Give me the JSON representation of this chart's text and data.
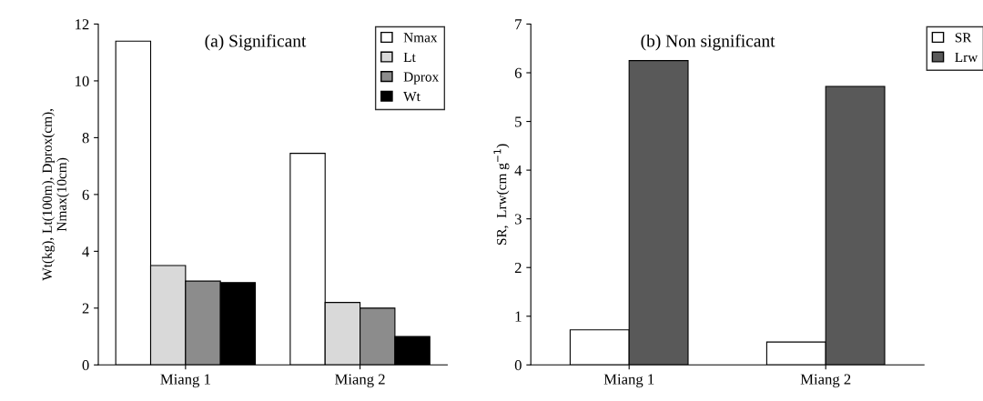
{
  "chart_data": [
    {
      "type": "bar",
      "title": "(a) Significant",
      "ylabel": "Wt(kg), Lt(100m), Dprox(cm),\nNmax(10cm)",
      "categories": [
        "Miang 1",
        "Miang 2"
      ],
      "series": [
        {
          "name": "Nmax",
          "color": "#ffffff",
          "values": [
            11.4,
            7.45
          ]
        },
        {
          "name": "Lt",
          "color": "#d9d9d9",
          "values": [
            3.5,
            2.2
          ]
        },
        {
          "name": "Dprox",
          "color": "#8c8c8c",
          "values": [
            2.95,
            2.0
          ]
        },
        {
          "name": "Wt",
          "color": "#000000",
          "values": [
            2.9,
            1.0
          ]
        }
      ],
      "ylim": [
        0,
        12
      ],
      "yticks": [
        0,
        2,
        4,
        6,
        8,
        10,
        12
      ],
      "grid": false,
      "legend": "top right"
    },
    {
      "type": "bar",
      "title": "(b) Non significant",
      "ylabel": "SR,  Lrw(cm g$^{−1}$)",
      "categories": [
        "Miang 1",
        "Miang 2"
      ],
      "series": [
        {
          "name": "SR",
          "color": "#ffffff",
          "values": [
            0.72,
            0.47
          ]
        },
        {
          "name": "Lrw",
          "color": "#595959",
          "values": [
            6.25,
            5.72
          ]
        }
      ],
      "ylim": [
        0,
        7
      ],
      "yticks": [
        0,
        1,
        2,
        3,
        4,
        5,
        6,
        7
      ],
      "grid": false,
      "legend": "top right"
    }
  ]
}
